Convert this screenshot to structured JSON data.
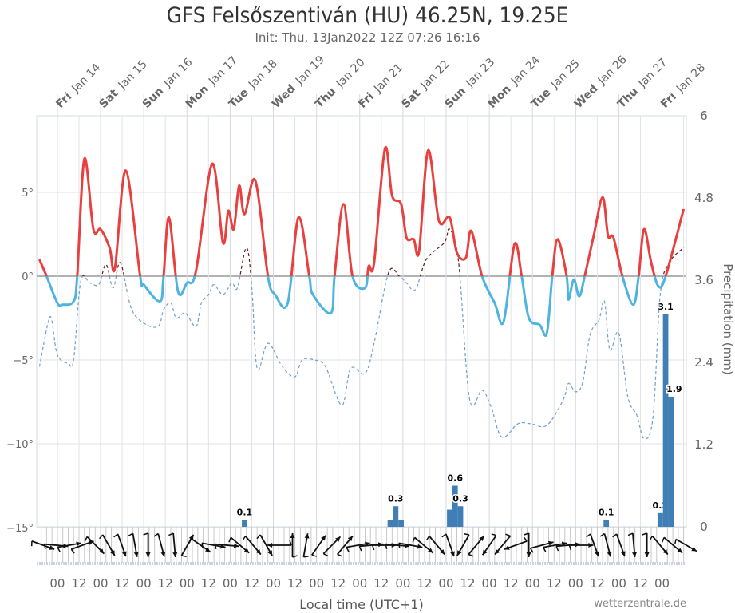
{
  "title": "GFS Felsőszentiván (HU) 46.25N, 19.25E",
  "subtitle": "Init: Thu, 13Jan2022 12Z 07:26 16:16",
  "credit": "wetterzentrale.de",
  "chart_data": {
    "type": "line",
    "title": "GFS Felsőszentiván (HU) 46.25N, 19.25E",
    "subtitle": "Init: Thu, 13Jan2022 12Z 07:26 16:16",
    "xlabel": "Local time (UTC+1)",
    "ylabel_right": "Precipitation (mm)",
    "xlim": [
      "2022-01-13T12:30",
      "2022-01-28T13:30"
    ],
    "ylim_left": [
      -15,
      9.6
    ],
    "ylim_right": [
      0,
      6
    ],
    "yticks_left": [
      "5°",
      "0°",
      "−5°",
      "−10°",
      "−15°"
    ],
    "yticks_left_values": [
      5,
      0,
      -5,
      -10,
      -15
    ],
    "yticks_right": [
      "6",
      "4.8",
      "3.6",
      "2.4",
      "1.2",
      "0"
    ],
    "yticks_right_values": [
      6,
      4.8,
      3.6,
      2.4,
      1.2,
      0
    ],
    "xticks_bottom": [
      "00",
      "12",
      "00",
      "12",
      "00",
      "12",
      "00",
      "12",
      "00",
      "12",
      "00",
      "12",
      "00",
      "12",
      "00",
      "12",
      "00",
      "12",
      "00",
      "12",
      "00",
      "12",
      "00",
      "12",
      "00",
      "12",
      "00",
      "12",
      "00"
    ],
    "day_labels": [
      {
        "weekday": "Fri",
        "date": "Jan 14",
        "time": "2022-01-14T00:00"
      },
      {
        "weekday": "Sat",
        "date": "Jan 15",
        "time": "2022-01-15T00:00"
      },
      {
        "weekday": "Sun",
        "date": "Jan 16",
        "time": "2022-01-16T00:00"
      },
      {
        "weekday": "Mon",
        "date": "Jan 17",
        "time": "2022-01-17T00:00"
      },
      {
        "weekday": "Tue",
        "date": "Jan 18",
        "time": "2022-01-18T00:00"
      },
      {
        "weekday": "Wed",
        "date": "Jan 19",
        "time": "2022-01-19T00:00"
      },
      {
        "weekday": "Thu",
        "date": "Jan 20",
        "time": "2022-01-20T00:00"
      },
      {
        "weekday": "Fri",
        "date": "Jan 21",
        "time": "2022-01-21T00:00"
      },
      {
        "weekday": "Sat",
        "date": "Jan 22",
        "time": "2022-01-22T00:00"
      },
      {
        "weekday": "Sun",
        "date": "Jan 23",
        "time": "2022-01-23T00:00"
      },
      {
        "weekday": "Mon",
        "date": "Jan 24",
        "time": "2022-01-24T00:00"
      },
      {
        "weekday": "Tue",
        "date": "Jan 25",
        "time": "2022-01-25T00:00"
      },
      {
        "weekday": "Wed",
        "date": "Jan 26",
        "time": "2022-01-26T00:00"
      },
      {
        "weekday": "Thu",
        "date": "Jan 27",
        "time": "2022-01-27T00:00"
      },
      {
        "weekday": "Fri",
        "date": "Jan 28",
        "time": "2022-01-28T00:00"
      }
    ],
    "grid": true,
    "colors": {
      "temp_warm": "#e8403f",
      "temp_cold": "#4fb3e0",
      "dew_warm": "#5b1e1e",
      "dew_cold": "#6f9fcc",
      "precip": "#3f7fb6",
      "zero_line": "#999999",
      "grid": "#e3e3e3"
    },
    "series": [
      {
        "key": "temperature",
        "points": [
          [
            "2022-01-13T14:00",
            1.0
          ],
          [
            "2022-01-13T18:00",
            0
          ],
          [
            "2022-01-14T00:00",
            -1.6
          ],
          [
            "2022-01-14T03:00",
            -1.7
          ],
          [
            "2022-01-14T09:00",
            -1.5
          ],
          [
            "2022-01-14T11:00",
            0
          ],
          [
            "2022-01-14T15:00",
            7.0
          ],
          [
            "2022-01-14T20:00",
            2.8
          ],
          [
            "2022-01-15T00:00",
            2.8
          ],
          [
            "2022-01-15T05:00",
            1.7
          ],
          [
            "2022-01-15T08:00",
            0.5
          ],
          [
            "2022-01-15T14:00",
            6.3
          ],
          [
            "2022-01-15T22:00",
            0
          ],
          [
            "2022-01-16T00:00",
            -0.5
          ],
          [
            "2022-01-16T09:00",
            -1.5
          ],
          [
            "2022-01-16T11:00",
            0
          ],
          [
            "2022-01-16T14:00",
            3.5
          ],
          [
            "2022-01-16T19:00",
            -0.9
          ],
          [
            "2022-01-17T00:00",
            -0.4
          ],
          [
            "2022-01-17T05:00",
            0.3
          ],
          [
            "2022-01-17T14:00",
            6.7
          ],
          [
            "2022-01-17T20:00",
            2.0
          ],
          [
            "2022-01-17T23:00",
            3.9
          ],
          [
            "2022-01-18T02:00",
            2.8
          ],
          [
            "2022-01-18T05:00",
            5.4
          ],
          [
            "2022-01-18T08:00",
            3.7
          ],
          [
            "2022-01-18T14:00",
            5.7
          ],
          [
            "2022-01-18T21:00",
            0
          ],
          [
            "2022-01-19T01:00",
            -1.1
          ],
          [
            "2022-01-19T08:00",
            -1.6
          ],
          [
            "2022-01-19T14:00",
            3.5
          ],
          [
            "2022-01-19T20:00",
            0
          ],
          [
            "2022-01-19T22:00",
            -1.1
          ],
          [
            "2022-01-20T08:00",
            -2.2
          ],
          [
            "2022-01-20T10:00",
            0
          ],
          [
            "2022-01-20T15:00",
            4.3
          ],
          [
            "2022-01-20T20:00",
            0
          ],
          [
            "2022-01-21T03:00",
            -0.7
          ],
          [
            "2022-01-21T05:00",
            0.6
          ],
          [
            "2022-01-21T08:00",
            0.8
          ],
          [
            "2022-01-21T14:00",
            7.6
          ],
          [
            "2022-01-21T18:00",
            4.8
          ],
          [
            "2022-01-21T23:00",
            4.3
          ],
          [
            "2022-01-22T02:00",
            2.3
          ],
          [
            "2022-01-22T06:00",
            2.2
          ],
          [
            "2022-01-22T09:00",
            1.5
          ],
          [
            "2022-01-22T14:00",
            7.5
          ],
          [
            "2022-01-22T20:00",
            3.3
          ],
          [
            "2022-01-23T02:00",
            3.5
          ],
          [
            "2022-01-23T06:00",
            1.4
          ],
          [
            "2022-01-23T11:00",
            1.1
          ],
          [
            "2022-01-23T14:00",
            2.7
          ],
          [
            "2022-01-23T20:00",
            0
          ],
          [
            "2022-01-24T03:00",
            -1.6
          ],
          [
            "2022-01-24T08:00",
            -2.7
          ],
          [
            "2022-01-24T14:00",
            1.9
          ],
          [
            "2022-01-24T18:00",
            0
          ],
          [
            "2022-01-24T22:00",
            -2.5
          ],
          [
            "2022-01-25T04:00",
            -2.9
          ],
          [
            "2022-01-25T08:00",
            -3.4
          ],
          [
            "2022-01-25T11:00",
            0
          ],
          [
            "2022-01-25T14:00",
            2.2
          ],
          [
            "2022-01-25T19:00",
            0
          ],
          [
            "2022-01-25T20:00",
            -1.4
          ],
          [
            "2022-01-25T23:00",
            -0.2
          ],
          [
            "2022-01-26T02:00",
            -1.2
          ],
          [
            "2022-01-26T05:00",
            0
          ],
          [
            "2022-01-26T10:00",
            2.4
          ],
          [
            "2022-01-26T15:00",
            4.7
          ],
          [
            "2022-01-26T18:00",
            2.4
          ],
          [
            "2022-01-26T21:00",
            2.3
          ],
          [
            "2022-01-27T02:00",
            0
          ],
          [
            "2022-01-27T08:00",
            -1.7
          ],
          [
            "2022-01-27T11:00",
            0
          ],
          [
            "2022-01-27T14:00",
            2.8
          ],
          [
            "2022-01-27T18:00",
            0.8
          ],
          [
            "2022-01-27T22:00",
            -0.6
          ],
          [
            "2022-01-28T02:00",
            0
          ],
          [
            "2022-01-28T12:00",
            4.0
          ]
        ]
      },
      {
        "key": "dew_point",
        "points": [
          [
            "2022-01-13T14:00",
            -5.4
          ],
          [
            "2022-01-13T19:00",
            -2.7
          ],
          [
            "2022-01-13T21:00",
            -2.7
          ],
          [
            "2022-01-14T00:00",
            -4.7
          ],
          [
            "2022-01-14T06:00",
            -5.2
          ],
          [
            "2022-01-14T09:00",
            -5.0
          ],
          [
            "2022-01-14T13:00",
            -0.3
          ],
          [
            "2022-01-14T18:00",
            -0.4
          ],
          [
            "2022-01-14T23:00",
            -0.5
          ],
          [
            "2022-01-15T03:00",
            0.7
          ],
          [
            "2022-01-15T07:00",
            -0.7
          ],
          [
            "2022-01-15T11:00",
            0.8
          ],
          [
            "2022-01-15T17:00",
            -1.9
          ],
          [
            "2022-01-16T00:00",
            -2.8
          ],
          [
            "2022-01-16T08:00",
            -3.0
          ],
          [
            "2022-01-16T11:00",
            -2.0
          ],
          [
            "2022-01-16T15:00",
            -1.6
          ],
          [
            "2022-01-16T18:00",
            -2.5
          ],
          [
            "2022-01-16T23:00",
            -2.2
          ],
          [
            "2022-01-17T05:00",
            -3.0
          ],
          [
            "2022-01-17T08:00",
            -1.6
          ],
          [
            "2022-01-17T12:00",
            -1.1
          ],
          [
            "2022-01-17T15:00",
            -0.5
          ],
          [
            "2022-01-17T20:00",
            -1.1
          ],
          [
            "2022-01-18T01:00",
            -0.4
          ],
          [
            "2022-01-18T04:00",
            -0.7
          ],
          [
            "2022-01-18T09:00",
            1.7
          ],
          [
            "2022-01-18T12:00",
            -0.6
          ],
          [
            "2022-01-18T15:00",
            -5.5
          ],
          [
            "2022-01-18T21:00",
            -4.0
          ],
          [
            "2022-01-19T05:00",
            -5.4
          ],
          [
            "2022-01-19T12:00",
            -6.0
          ],
          [
            "2022-01-19T16:00",
            -5.0
          ],
          [
            "2022-01-19T23:00",
            -5.0
          ],
          [
            "2022-01-20T05:00",
            -5.4
          ],
          [
            "2022-01-20T14:00",
            -7.7
          ],
          [
            "2022-01-20T19:00",
            -5.5
          ],
          [
            "2022-01-21T03:00",
            -5.8
          ],
          [
            "2022-01-21T08:00",
            -4.0
          ],
          [
            "2022-01-21T16:00",
            0.2
          ],
          [
            "2022-01-21T22:00",
            0.0
          ],
          [
            "2022-01-22T02:00",
            -0.4
          ],
          [
            "2022-01-22T07:00",
            -0.8
          ],
          [
            "2022-01-22T13:00",
            1.0
          ],
          [
            "2022-01-22T23:00",
            2.0
          ],
          [
            "2022-01-23T02:00",
            2.8
          ],
          [
            "2022-01-23T07:00",
            0.8
          ],
          [
            "2022-01-23T13:00",
            -7.3
          ],
          [
            "2022-01-23T20:00",
            -6.8
          ],
          [
            "2022-01-24T01:00",
            -7.8
          ],
          [
            "2022-01-24T07:00",
            -9.6
          ],
          [
            "2022-01-24T16:00",
            -8.8
          ],
          [
            "2022-01-24T23:00",
            -8.8
          ],
          [
            "2022-01-25T08:00",
            -8.9
          ],
          [
            "2022-01-25T17:00",
            -7.4
          ],
          [
            "2022-01-25T20:00",
            -6.4
          ],
          [
            "2022-01-26T00:00",
            -6.9
          ],
          [
            "2022-01-26T04:00",
            -6.3
          ],
          [
            "2022-01-26T08:00",
            -3.5
          ],
          [
            "2022-01-26T13:00",
            -2.6
          ],
          [
            "2022-01-26T16:00",
            -1.5
          ],
          [
            "2022-01-26T19:00",
            -4.4
          ],
          [
            "2022-01-27T00:00",
            -3.4
          ],
          [
            "2022-01-27T05:00",
            -7.2
          ],
          [
            "2022-01-27T10:00",
            -8.3
          ],
          [
            "2022-01-27T14:00",
            -9.7
          ],
          [
            "2022-01-27T19:00",
            -8.4
          ],
          [
            "2022-01-27T23:00",
            -1.1
          ],
          [
            "2022-01-28T04:00",
            0.8
          ],
          [
            "2022-01-28T12:00",
            1.7
          ]
        ]
      },
      {
        "key": "precipitation",
        "type": "bar",
        "points": [
          {
            "time": "2022-01-18T08:00",
            "value": 0.1,
            "label": "0.1"
          },
          {
            "time": "2022-01-21T17:00",
            "value": 0.1
          },
          {
            "time": "2022-01-21T20:00",
            "value": 0.3,
            "label": "0.3"
          },
          {
            "time": "2022-01-21T23:00",
            "value": 0.1
          },
          {
            "time": "2022-01-23T02:00",
            "value": 0.25
          },
          {
            "time": "2022-01-23T05:00",
            "value": 0.6,
            "label": "0.6"
          },
          {
            "time": "2022-01-23T08:00",
            "value": 0.3,
            "label": "0.3"
          },
          {
            "time": "2022-01-26T17:00",
            "value": 0.1,
            "label": "0.1"
          },
          {
            "time": "2022-01-27T23:00",
            "value": 0.2,
            "label": "0.2"
          },
          {
            "time": "2022-01-28T02:00",
            "value": 3.1,
            "label": "3.1"
          },
          {
            "time": "2022-01-28T05:00",
            "value": 1.9,
            "label": "1.9"
          }
        ]
      }
    ],
    "wind_arrow_heading_deg": [
      110,
      95,
      80,
      70,
      135,
      150,
      160,
      170,
      180,
      165,
      175,
      30,
      125,
      100,
      95,
      130,
      140,
      150,
      270,
      0,
      10,
      35,
      45,
      40,
      80,
      85,
      90,
      95,
      100,
      130,
      140,
      160,
      210,
      40,
      215,
      220,
      250,
      180,
      75,
      80,
      85,
      90,
      160,
      165,
      160,
      175,
      180,
      140,
      130,
      120
    ]
  }
}
